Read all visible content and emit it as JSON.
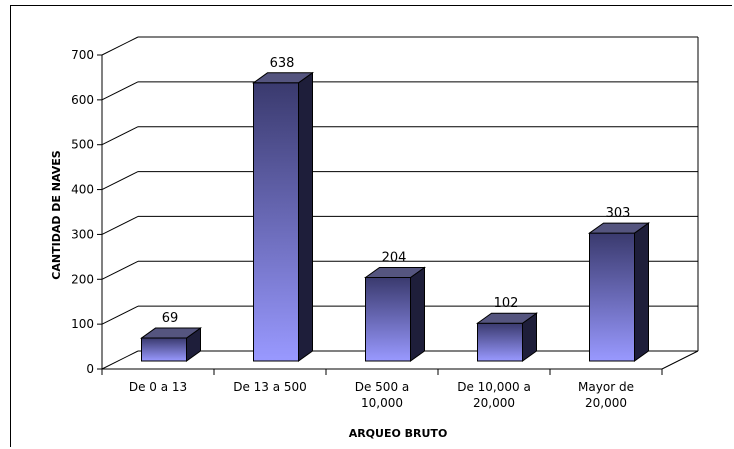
{
  "chart_data": {
    "type": "bar",
    "style": "3d-column",
    "categories": [
      "De 0 a 13",
      "De 13 a 500",
      "De 500 a 10,000",
      "De 10,000 a 20,000",
      "Mayor de 20,000"
    ],
    "category_lines": [
      [
        "De 0 a 13"
      ],
      [
        "De 13 a 500"
      ],
      [
        "De 500 a",
        "10,000"
      ],
      [
        "De 10,000 a",
        "20,000"
      ],
      [
        "Mayor de",
        "20,000"
      ]
    ],
    "values": [
      69,
      638,
      204,
      102,
      303
    ],
    "data_labels": [
      "69",
      "638",
      "204",
      "102",
      "303"
    ],
    "xlabel": "ARQUEO BRUTO",
    "ylabel": "CANTIDAD DE NAVES",
    "ylim": [
      0,
      700
    ],
    "yticks": [
      0,
      100,
      200,
      300,
      400,
      500,
      600,
      700
    ],
    "grid": true,
    "legend": "none",
    "colors": {
      "bar_front_bottom": "#9999ff",
      "bar_front_top": "#3a3a6e",
      "bar_side": "#1e1e3a",
      "bar_top": "#55557f",
      "grid": "#000000"
    }
  }
}
